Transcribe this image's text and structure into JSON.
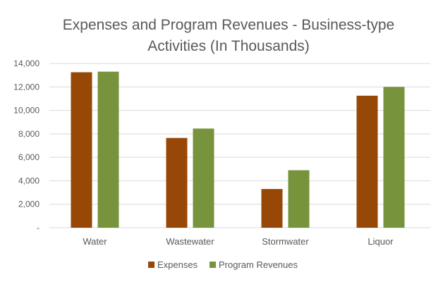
{
  "chart_data": {
    "type": "bar",
    "title_lines": [
      "Expenses and Program Revenues - Business-type",
      "Activities (In Thousands)"
    ],
    "categories": [
      "Water",
      "Wastewater",
      "Stormwater",
      "Liquor"
    ],
    "series": [
      {
        "name": "Expenses",
        "color": "#974706",
        "values": [
          13250,
          7650,
          3300,
          11250
        ]
      },
      {
        "name": "Program Revenues",
        "color": "#77933C",
        "values": [
          13300,
          8450,
          4900,
          12000
        ]
      }
    ],
    "ylim": [
      0,
      14000
    ],
    "yticks": [
      0,
      2000,
      4000,
      6000,
      8000,
      10000,
      12000,
      14000
    ],
    "ytick_labels": [
      "-",
      "2,000",
      "4,000",
      "6,000",
      "8,000",
      "10,000",
      "12,000",
      "14,000"
    ],
    "xlabel": "",
    "ylabel": "",
    "grid": true,
    "legend_position": "bottom"
  }
}
